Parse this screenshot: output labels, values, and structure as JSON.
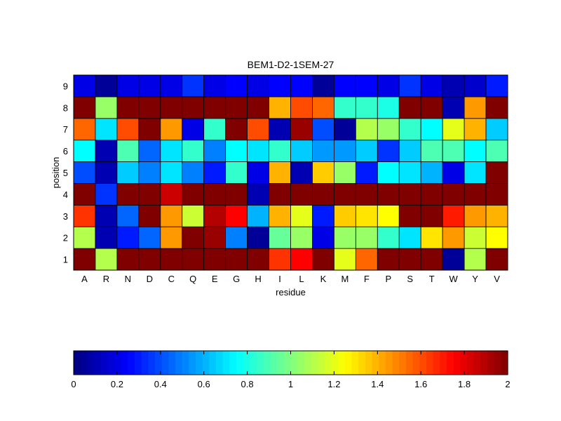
{
  "chart_data": {
    "type": "heatmap",
    "title": "BEM1-D2-1SEM-27",
    "xlabel": "residue",
    "ylabel": "position",
    "categories_x": [
      "A",
      "R",
      "N",
      "D",
      "C",
      "Q",
      "E",
      "G",
      "H",
      "I",
      "L",
      "K",
      "M",
      "F",
      "P",
      "S",
      "T",
      "W",
      "Y",
      "V"
    ],
    "categories_y": [
      "1",
      "2",
      "3",
      "4",
      "5",
      "6",
      "7",
      "8",
      "9"
    ],
    "colormap": "jet",
    "clim": [
      0,
      2
    ],
    "colorbar": {
      "orientation": "horizontal",
      "location": "bottom",
      "ticks": [
        0,
        0.2,
        0.4,
        0.6,
        0.8,
        1,
        1.2,
        1.4,
        1.6,
        1.8,
        2
      ],
      "tick_labels": [
        "0",
        "0.2",
        "0.4",
        "0.6",
        "0.8",
        "1",
        "1.2",
        "1.4",
        "1.6",
        "1.8",
        "2"
      ]
    },
    "rows": [
      {
        "position": "1",
        "values": [
          2.0,
          1.1,
          2.0,
          2.0,
          2.0,
          2.0,
          2.0,
          2.0,
          2.0,
          1.65,
          1.75,
          2.0,
          1.2,
          1.55,
          2.0,
          2.0,
          2.0,
          0.05,
          1.1,
          2.0
        ]
      },
      {
        "position": "2",
        "values": [
          1.1,
          0.1,
          0.3,
          0.45,
          1.45,
          2.0,
          1.95,
          0.5,
          0.05,
          0.95,
          1.05,
          0.2,
          1.05,
          1.05,
          0.85,
          0.7,
          1.3,
          1.45,
          1.15,
          1.25
        ]
      },
      {
        "position": "3",
        "values": [
          1.65,
          0.1,
          0.45,
          2.0,
          1.45,
          1.15,
          1.9,
          1.75,
          0.6,
          1.4,
          1.2,
          0.3,
          1.35,
          1.3,
          1.25,
          2.0,
          2.0,
          1.7,
          1.45,
          1.4
        ]
      },
      {
        "position": "4",
        "values": [
          2.0,
          0.35,
          2.0,
          2.0,
          1.85,
          2.0,
          2.0,
          2.0,
          0.1,
          2.0,
          2.0,
          2.0,
          2.0,
          2.0,
          2.0,
          2.0,
          2.0,
          2.0,
          2.0,
          2.0
        ]
      },
      {
        "position": "5",
        "values": [
          0.4,
          0.1,
          0.65,
          0.5,
          0.7,
          0.5,
          0.3,
          0.85,
          0.2,
          1.4,
          0.1,
          1.35,
          1.05,
          0.3,
          0.75,
          0.7,
          0.6,
          0.2,
          0.7,
          2.0
        ]
      },
      {
        "position": "6",
        "values": [
          0.75,
          0.1,
          0.9,
          0.45,
          0.7,
          0.85,
          0.5,
          0.75,
          0.7,
          0.85,
          0.65,
          0.55,
          0.55,
          0.65,
          0.35,
          0.65,
          0.9,
          0.9,
          0.75,
          0.9
        ]
      },
      {
        "position": "7",
        "values": [
          1.55,
          0.7,
          1.6,
          2.0,
          1.45,
          0.2,
          0.85,
          2.0,
          1.6,
          0.1,
          1.95,
          0.4,
          0.05,
          1.1,
          1.05,
          0.85,
          0.75,
          1.2,
          1.4,
          0.65
        ]
      },
      {
        "position": "8",
        "values": [
          2.0,
          1.05,
          2.0,
          2.0,
          2.0,
          2.0,
          2.0,
          2.0,
          2.0,
          1.4,
          1.6,
          1.55,
          0.85,
          0.85,
          0.8,
          2.0,
          2.0,
          0.1,
          1.45,
          2.0
        ]
      },
      {
        "position": "9",
        "values": [
          0.2,
          0.05,
          0.2,
          0.2,
          0.2,
          0.35,
          0.2,
          0.25,
          0.2,
          0.25,
          0.25,
          0.05,
          0.25,
          0.25,
          0.2,
          0.35,
          0.2,
          0.1,
          0.15,
          0.3
        ]
      }
    ]
  }
}
